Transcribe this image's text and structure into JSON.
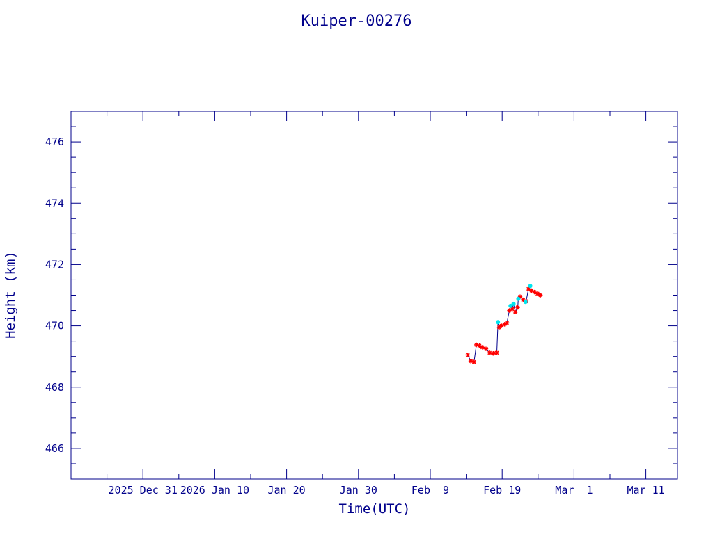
{
  "chart_data": {
    "type": "line",
    "title": "Kuiper-00276",
    "xlabel": "Time(UTC)",
    "ylabel": "Height (km)",
    "xlim": [
      "2025-12-21",
      "2026-03-15"
    ],
    "ylim": [
      465,
      477
    ],
    "x_tick_labels": [
      "2025 Dec 31",
      "2026 Jan 10",
      "Jan 20",
      "Jan 30",
      "Feb  9",
      "Feb 19",
      "Mar  1",
      "Mar 11"
    ],
    "x_tick_dates": [
      "2025-12-31",
      "2026-01-10",
      "2026-01-20",
      "2026-01-30",
      "2026-02-09",
      "2026-02-19",
      "2026-03-01",
      "2026-03-11"
    ],
    "y_tick_labels": [
      "466",
      "468",
      "470",
      "472",
      "474",
      "476"
    ],
    "y_tick_values": [
      466,
      468,
      470,
      472,
      474,
      476
    ],
    "grid": false,
    "colors": {
      "axis": "#00008b",
      "line": "#00008b",
      "marker_primary": "#ff0000",
      "marker_secondary": "#00e5ee"
    },
    "series": [
      {
        "marker": "star",
        "color": "#ff0000",
        "points": [
          [
            "2026-02-14 05:00",
            469.05
          ],
          [
            "2026-02-14 15:00",
            468.85
          ],
          [
            "2026-02-15 02:00",
            468.82
          ],
          [
            "2026-02-15 10:00",
            469.38
          ],
          [
            "2026-02-15 20:00",
            469.35
          ],
          [
            "2026-02-16 06:00",
            469.3
          ],
          [
            "2026-02-16 18:00",
            469.25
          ],
          [
            "2026-02-17 06:00",
            469.12
          ],
          [
            "2026-02-17 18:00",
            469.1
          ],
          [
            "2026-02-18 06:00",
            469.12
          ],
          [
            "2026-02-18 14:00",
            469.95
          ],
          [
            "2026-02-18 22:00",
            470.0
          ],
          [
            "2026-02-19 08:00",
            470.05
          ],
          [
            "2026-02-19 16:00",
            470.1
          ],
          [
            "2026-02-20 00:00",
            470.5
          ],
          [
            "2026-02-20 10:00",
            470.55
          ],
          [
            "2026-02-20 20:00",
            470.45
          ],
          [
            "2026-02-21 04:00",
            470.6
          ],
          [
            "2026-02-21 12:00",
            470.95
          ],
          [
            "2026-02-21 22:00",
            470.85
          ],
          [
            "2026-02-22 08:00",
            470.8
          ],
          [
            "2026-02-22 16:00",
            471.2
          ],
          [
            "2026-02-23 02:00",
            471.15
          ],
          [
            "2026-02-23 12:00",
            471.1
          ],
          [
            "2026-02-23 22:00",
            471.05
          ],
          [
            "2026-02-24 08:00",
            471.0
          ]
        ]
      },
      {
        "marker": "dot",
        "color": "#00e5ee",
        "points": [
          [
            "2026-02-18 10:00",
            470.12
          ],
          [
            "2026-02-20 04:00",
            470.65
          ],
          [
            "2026-02-20 14:00",
            470.72
          ],
          [
            "2026-02-21 06:00",
            470.88
          ],
          [
            "2026-02-22 06:00",
            470.78
          ],
          [
            "2026-02-22 22:00",
            471.3
          ]
        ]
      }
    ]
  }
}
